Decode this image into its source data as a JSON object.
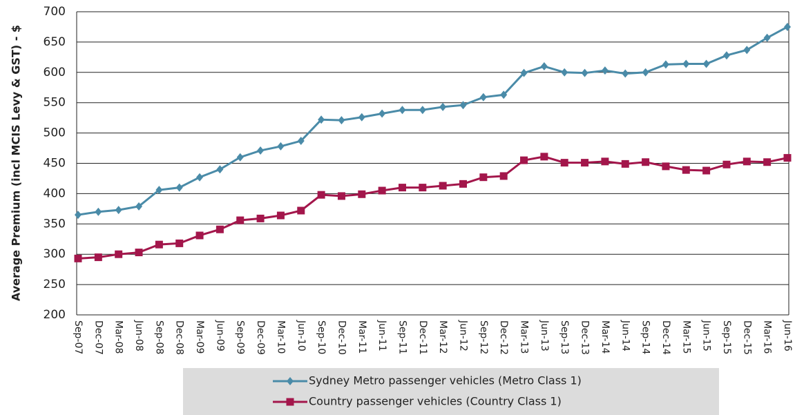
{
  "chart_data": {
    "type": "line",
    "y_label": "Average Premium (incl MCIS Levy & GST) - $",
    "categories": [
      "Sep-07",
      "Dec-07",
      "Mar-08",
      "Jun-08",
      "Sep-08",
      "Dec-08",
      "Mar-09",
      "Jun-09",
      "Sep-09",
      "Dec-09",
      "Mar-10",
      "Jun-10",
      "Sep-10",
      "Dec-10",
      "Mar-11",
      "Jun-11",
      "Sep-11",
      "Dec-11",
      "Mar-12",
      "Jun-12",
      "Sep-12",
      "Dec-12",
      "Mar-13",
      "Jun-13",
      "Sep-13",
      "Dec-13",
      "Mar-14",
      "Jun-14",
      "Sep-14",
      "Dec-14",
      "Mar-15",
      "Jun-15",
      "Sep-15",
      "Dec-15",
      "Mar-16",
      "Jun-16"
    ],
    "series": [
      {
        "name": "Sydney Metro passenger vehicles (Metro Class 1)",
        "color": "#4a8ba8",
        "marker": "diamond",
        "values": [
          365,
          370,
          373,
          379,
          406,
          410,
          427,
          440,
          460,
          471,
          478,
          487,
          522,
          521,
          526,
          532,
          538,
          538,
          543,
          546,
          559,
          563,
          599,
          610,
          600,
          599,
          603,
          598,
          600,
          613,
          614,
          614,
          628,
          637,
          657,
          675
        ]
      },
      {
        "name": "Country passenger vehicles (Country Class 1)",
        "color": "#a3164b",
        "marker": "square",
        "values": [
          293,
          295,
          300,
          303,
          316,
          318,
          331,
          341,
          356,
          359,
          364,
          372,
          398,
          396,
          399,
          405,
          410,
          410,
          413,
          416,
          427,
          429,
          455,
          461,
          451,
          451,
          453,
          449,
          452,
          445,
          439,
          438,
          448,
          453,
          452,
          459
        ]
      }
    ],
    "ylim": [
      200,
      700
    ],
    "yticks": [
      200,
      250,
      300,
      350,
      400,
      450,
      500,
      550,
      600,
      650,
      700
    ],
    "grid": true
  }
}
